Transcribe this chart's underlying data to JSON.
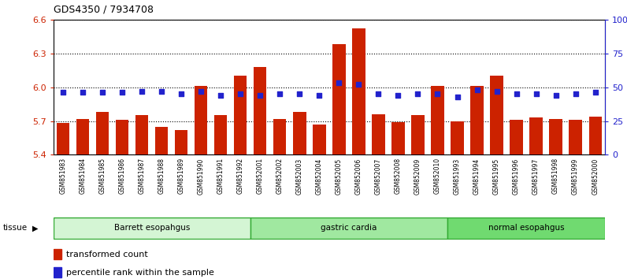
{
  "title": "GDS4350 / 7934708",
  "samples": [
    "GSM851983",
    "GSM851984",
    "GSM851985",
    "GSM851986",
    "GSM851987",
    "GSM851988",
    "GSM851989",
    "GSM851990",
    "GSM851991",
    "GSM851992",
    "GSM852001",
    "GSM852002",
    "GSM852003",
    "GSM852004",
    "GSM852005",
    "GSM852006",
    "GSM852007",
    "GSM852008",
    "GSM852009",
    "GSM852010",
    "GSM851993",
    "GSM851994",
    "GSM851995",
    "GSM851996",
    "GSM851997",
    "GSM851998",
    "GSM851999",
    "GSM852000"
  ],
  "bar_values": [
    5.68,
    5.72,
    5.78,
    5.71,
    5.75,
    5.65,
    5.62,
    6.01,
    5.75,
    6.1,
    6.18,
    5.72,
    5.78,
    5.67,
    6.38,
    6.52,
    5.76,
    5.69,
    5.75,
    6.01,
    5.7,
    6.01,
    6.1,
    5.71,
    5.73,
    5.72,
    5.71,
    5.74
  ],
  "percentile_values": [
    46,
    46,
    46,
    46,
    47,
    47,
    45,
    47,
    44,
    45,
    44,
    45,
    45,
    44,
    53,
    52,
    45,
    44,
    45,
    45,
    43,
    48,
    47,
    45,
    45,
    44,
    45,
    46
  ],
  "groups": [
    {
      "label": "Barrett esopahgus",
      "start": 0,
      "end": 10,
      "color": "#d4f5d4"
    },
    {
      "label": "gastric cardia",
      "start": 10,
      "end": 20,
      "color": "#a0e8a0"
    },
    {
      "label": "normal esopahgus",
      "start": 20,
      "end": 28,
      "color": "#70da70"
    }
  ],
  "y_min": 5.4,
  "y_max": 6.6,
  "y_ticks": [
    5.4,
    5.7,
    6.0,
    6.3,
    6.6
  ],
  "right_y_ticks": [
    0,
    25,
    50,
    75,
    100
  ],
  "right_y_labels": [
    "0",
    "25",
    "50",
    "75",
    "100%"
  ],
  "bar_color": "#cc2200",
  "dot_color": "#2222cc",
  "bar_bottom": 5.4,
  "legend_bar_label": "transformed count",
  "legend_dot_label": "percentile rank within the sample",
  "xlabel_color": "#cc2200",
  "right_ylabel_color": "#2222cc",
  "xtick_bg_color": "#d8d8d8"
}
